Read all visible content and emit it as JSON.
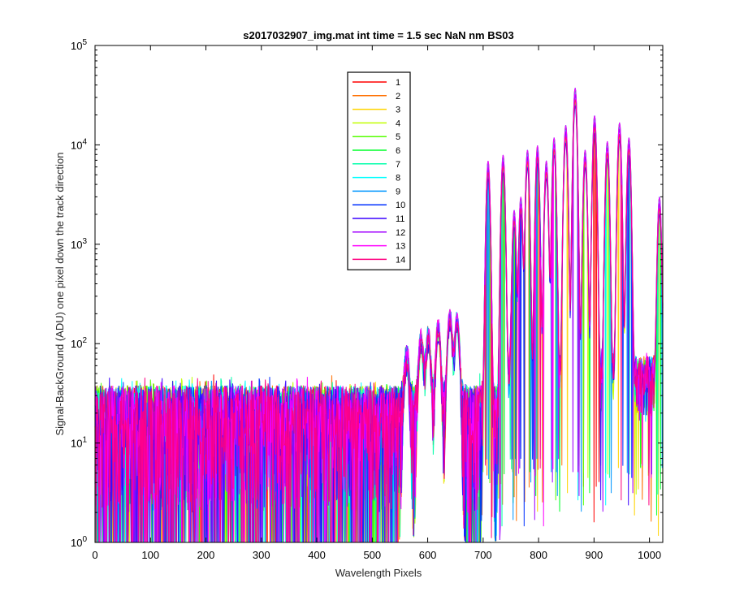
{
  "chart_data": {
    "type": "line",
    "title": "s2017032907_img.mat int time = 1.5 sec  NaN nm BS03",
    "xlabel": "Wavelength Pixels",
    "ylabel": "Signal-BackGround (ADU) one pixel down the track direction",
    "xlim": [
      0,
      1024
    ],
    "ylim": [
      1,
      100000
    ],
    "yscale": "log",
    "x_ticks": [
      0,
      100,
      200,
      300,
      400,
      500,
      600,
      700,
      800,
      900,
      1000
    ],
    "y_tick_exponents": [
      0,
      1,
      2,
      3,
      4,
      5
    ],
    "y_tick_base": "10",
    "legend_position": "top-center",
    "grid": false,
    "noise_floor": {
      "x_range": [
        0,
        700
      ],
      "typical_y": 10,
      "min_y": 1,
      "max_y": 60
    },
    "peaks": [
      {
        "x": 562,
        "y": 70
      },
      {
        "x": 588,
        "y": 110
      },
      {
        "x": 601,
        "y": 120
      },
      {
        "x": 619,
        "y": 150
      },
      {
        "x": 640,
        "y": 200
      },
      {
        "x": 653,
        "y": 180
      },
      {
        "x": 709,
        "y": 7000
      },
      {
        "x": 736,
        "y": 8000
      },
      {
        "x": 756,
        "y": 2200
      },
      {
        "x": 768,
        "y": 3000
      },
      {
        "x": 780,
        "y": 9000
      },
      {
        "x": 798,
        "y": 10000
      },
      {
        "x": 814,
        "y": 7000
      },
      {
        "x": 828,
        "y": 12000
      },
      {
        "x": 849,
        "y": 16000
      },
      {
        "x": 866,
        "y": 38000
      },
      {
        "x": 884,
        "y": 9000
      },
      {
        "x": 901,
        "y": 20000
      },
      {
        "x": 924,
        "y": 11000
      },
      {
        "x": 946,
        "y": 17000
      },
      {
        "x": 963,
        "y": 12000
      },
      {
        "x": 1018,
        "y": 3000
      }
    ],
    "series": [
      {
        "name": "1",
        "color": "#ff0000"
      },
      {
        "name": "2",
        "color": "#ff6f00"
      },
      {
        "name": "3",
        "color": "#ffd400"
      },
      {
        "name": "4",
        "color": "#c0ff00"
      },
      {
        "name": "5",
        "color": "#55ff00"
      },
      {
        "name": "6",
        "color": "#00ff2a"
      },
      {
        "name": "7",
        "color": "#00ffaa"
      },
      {
        "name": "8",
        "color": "#00ffff"
      },
      {
        "name": "9",
        "color": "#0096ff"
      },
      {
        "name": "10",
        "color": "#0030ff"
      },
      {
        "name": "11",
        "color": "#3a00ff"
      },
      {
        "name": "12",
        "color": "#a000ff"
      },
      {
        "name": "13",
        "color": "#ff00ff"
      },
      {
        "name": "14",
        "color": "#ff0080"
      }
    ]
  }
}
